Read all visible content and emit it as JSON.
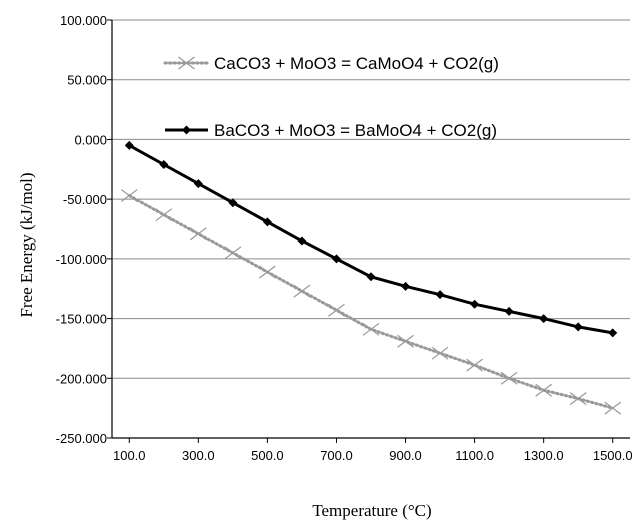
{
  "chart_data": {
    "type": "line",
    "title": "",
    "xlabel": "Temperature (°C)",
    "ylabel": "Free Energy (kJ/mol)",
    "xlim": [
      50,
      1550
    ],
    "ylim": [
      -250,
      100
    ],
    "x_ticks": [
      100,
      300,
      500,
      700,
      900,
      1100,
      1300,
      1500
    ],
    "x_tick_labels": [
      "100.0",
      "300.0",
      "500.0",
      "700.0",
      "900.0",
      "1100.0",
      "1300.0",
      "1500.0"
    ],
    "y_ticks": [
      100,
      50,
      0,
      -50,
      -100,
      -150,
      -200,
      -250
    ],
    "y_tick_labels": [
      "100.000",
      "50.000",
      "0.000",
      "-50.000",
      "-100.000",
      "-150.000",
      "-200.000",
      "-250.000"
    ],
    "grid": "horizontal",
    "legend_position": "top-right",
    "x": [
      100,
      200,
      300,
      400,
      500,
      600,
      700,
      800,
      900,
      1000,
      1100,
      1200,
      1300,
      1400,
      1500
    ],
    "series": [
      {
        "name": "CaCO3 + MoO3 = CaMoO4 + CO2(g)",
        "color": "#999999",
        "line_style": "dotted",
        "marker": "x",
        "values": [
          -47,
          -63,
          -79,
          -95,
          -111,
          -127,
          -143,
          -159,
          -169,
          -179,
          -189,
          -200,
          -210,
          -217,
          -225
        ]
      },
      {
        "name": "BaCO3 + MoO3 = BaMoO4 + CO2(g)",
        "color": "#000000",
        "line_style": "solid",
        "marker": "diamond",
        "values": [
          -5,
          -21,
          -37,
          -53,
          -69,
          -85,
          -100,
          -115,
          -123,
          -130,
          -138,
          -144,
          -150,
          -157,
          -162
        ]
      }
    ]
  }
}
